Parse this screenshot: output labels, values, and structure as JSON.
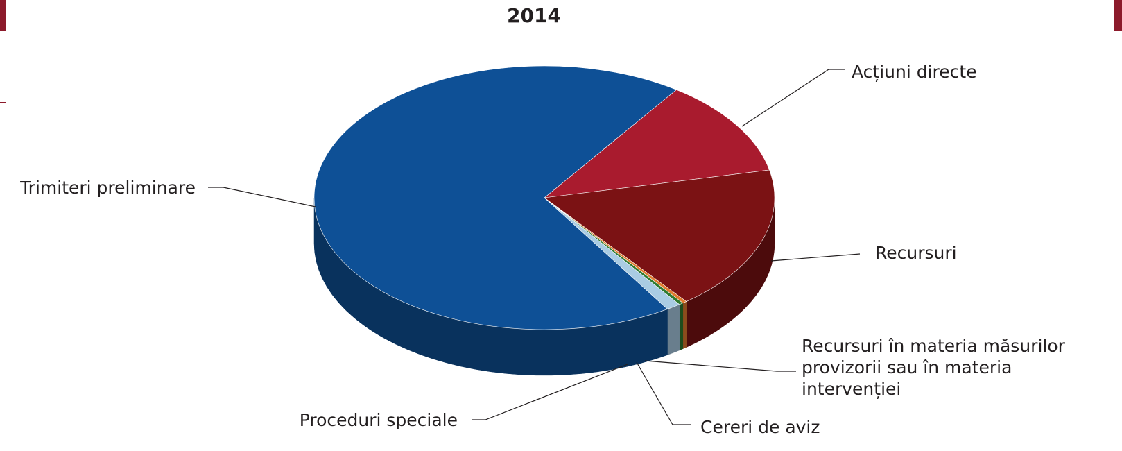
{
  "chart_data": {
    "type": "pie",
    "title": "2014",
    "categories": [
      "Acțiuni directe",
      "Recursuri",
      "Recursuri în materia măsurilor provizorii sau în materia intervenției",
      "Cereri de aviz",
      "Proceduri speciale",
      "Trimiteri preliminare"
    ],
    "values": [
      11.9,
      17.8,
      0.3,
      0.3,
      1.0,
      68.7
    ],
    "colors": [
      "#a91b2e",
      "#7b1214",
      "#e07a2e",
      "#2f7a2f",
      "#a9cce3",
      "#0e5096"
    ]
  }
}
